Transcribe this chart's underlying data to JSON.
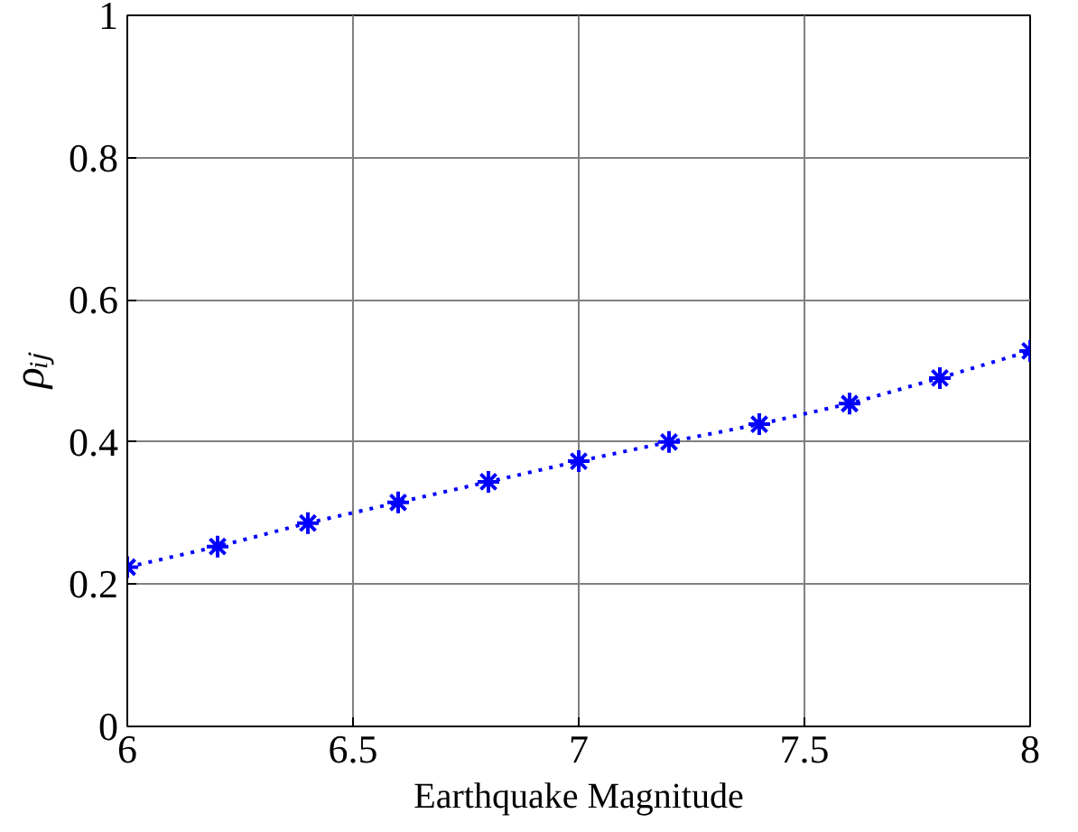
{
  "chart_data": {
    "type": "line",
    "xlabel": "Earthquake Magnitude",
    "ylabel": "ρᵢⱼ",
    "x": [
      6,
      6.2,
      6.4,
      6.6,
      6.8,
      7,
      7.2,
      7.4,
      7.6,
      7.8,
      8
    ],
    "series": [
      {
        "color": "#0000ff",
        "values": [
          0.224,
          0.253,
          0.286,
          0.315,
          0.344,
          0.373,
          0.4,
          0.425,
          0.454,
          0.49,
          0.528
        ]
      }
    ],
    "xlim": [
      6,
      8
    ],
    "xticks": [
      6,
      6.5,
      7,
      7.5,
      8
    ],
    "ylim": [
      0,
      1
    ],
    "yticks": [
      0,
      0.2,
      0.4,
      0.6,
      0.8,
      1
    ],
    "grid": true,
    "marker": "cross",
    "line_style": "dotted"
  }
}
